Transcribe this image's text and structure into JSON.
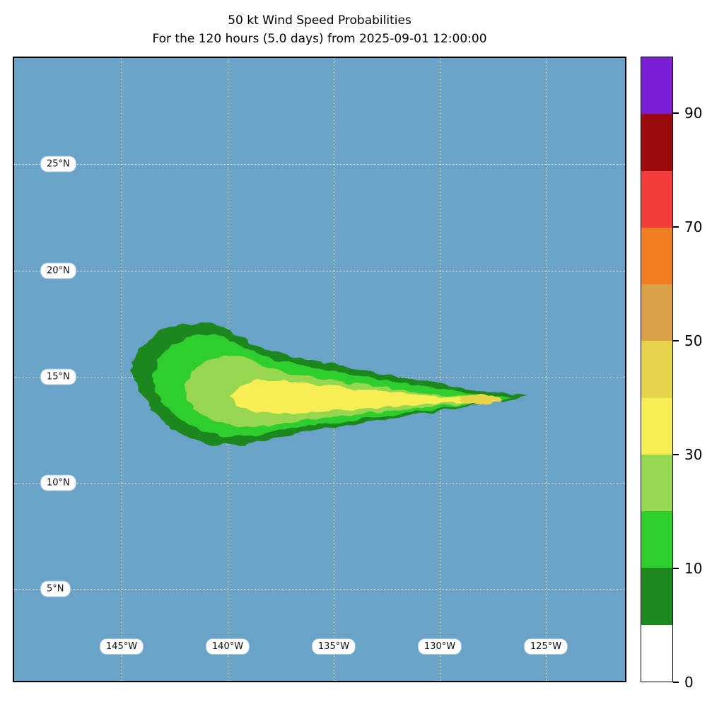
{
  "title": {
    "line1": "50 kt Wind Speed Probabilities",
    "line2": "For the 120 hours (5.0 days) from 2025-09-01 12:00:00"
  },
  "map": {
    "background_color": "#6ba3c8",
    "lat_labels": [
      "25°N",
      "20°N",
      "15°N",
      "10°N",
      "5°N"
    ],
    "lon_labels": [
      "145°W",
      "140°W",
      "135°W",
      "130°W",
      "125°W"
    ]
  },
  "colorbar": {
    "levels": [
      0,
      5,
      10,
      20,
      30,
      40,
      50,
      60,
      70,
      80,
      90,
      100
    ],
    "tick_labels": [
      "90",
      "70",
      "50",
      "30",
      "10",
      "0"
    ],
    "colors_top_to_bottom": [
      "#7a1fd6",
      "#9b0b0b",
      "#f23c3c",
      "#ef7d23",
      "#daa048",
      "#e8d44a",
      "#f7ee53",
      "#96d750",
      "#2fce2f",
      "#1e871e",
      "#ffffff"
    ]
  },
  "chart_data": {
    "type": "heatmap",
    "subtype": "filled-contour wind speed probability map",
    "title": "50 kt Wind Speed Probabilities",
    "subtitle": "For the 120 hours (5.0 days) from 2025-09-01 12:00:00",
    "wind_speed_threshold_kt": 50,
    "forecast_hours": 120,
    "forecast_days": 5.0,
    "start_time": "2025-09-01 12:00:00",
    "value_units": "% probability",
    "grid": "dotted",
    "legend_position": "right colorbar",
    "lon_ticks": [
      "145W",
      "140W",
      "135W",
      "130W",
      "125W"
    ],
    "lat_ticks": [
      "25N",
      "20N",
      "15N",
      "10N",
      "5N"
    ],
    "map_extent": {
      "lon_west": -150.1,
      "lon_east": -121.1,
      "lat_south": 0.5,
      "lat_north": 30.0
    },
    "colorbar_levels_pct": [
      0,
      5,
      10,
      20,
      30,
      40,
      50,
      60,
      70,
      80,
      90,
      100
    ],
    "colorbar_tick_values": [
      0,
      10,
      30,
      50,
      70,
      90
    ],
    "max_probability_pct": "40-50",
    "max_probability_location": {
      "lon": -127.5,
      "lat": 13.9
    },
    "contours": [
      {
        "min_pct": 5,
        "color": "#1e871e",
        "lon_west": -144.6,
        "lon_east": -125.9,
        "lat_south": 11.8,
        "lat_north": 17.7
      },
      {
        "min_pct": 10,
        "color": "#2fce2f",
        "lon_west": -144.1,
        "lon_east": -126.4,
        "lat_south": 12.2,
        "lat_north": 17.3
      },
      {
        "min_pct": 20,
        "color": "#96d750",
        "lon_west": -142.6,
        "lon_east": -126.7,
        "lat_south": 12.8,
        "lat_north": 16.4
      },
      {
        "min_pct": 30,
        "color": "#f7ee53",
        "lon_west": -140.4,
        "lon_east": -126.9,
        "lat_south": 13.2,
        "lat_north": 15.2
      },
      {
        "min_pct": 40,
        "color": "#e8d44a",
        "lon_west": -129.0,
        "lon_east": -127.0,
        "lat_south": 13.6,
        "lat_north": 14.2
      }
    ]
  }
}
